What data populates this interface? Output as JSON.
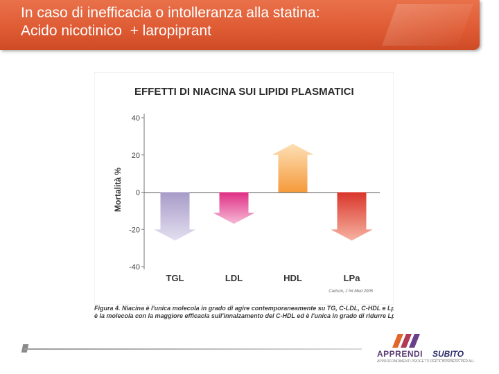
{
  "slide": {
    "title_line1": "In caso di inefficacia o intolleranza alla statina:",
    "title_line2": "Acido nicotinico  + laropiprant"
  },
  "chart_data": {
    "type": "bar",
    "title": "EFFETTI DI NIACINA SUI LIPIDI PLASMATICI",
    "ylabel": "Mortalità %",
    "xlabel": "",
    "categories": [
      "TGL",
      "LDL",
      "HDL",
      "LPa"
    ],
    "values": [
      -26,
      -17,
      26,
      -26
    ],
    "ylim": [
      -40,
      40
    ],
    "yticks": [
      40,
      20,
      0,
      -20,
      -40
    ],
    "grid": false,
    "colors": [
      "#b9afd3",
      "#e03a8a",
      "#f6a24a",
      "#e0442f"
    ],
    "source_note": "Carlson, J Int Med 2005"
  },
  "caption": {
    "line1": "Figura 4. Niacina è l'unica molecola in grado di agire contemporaneamente su TG, C-LDL, C-HDL e Lp(a). Inoltre,",
    "line2": "è la molecola con la maggiore efficacia sull'innalzamento del C-HDL ed è l'unica in grado di ridurre Lp(a)."
  },
  "logo": {
    "brand": "APPRENDI",
    "tagline": "APPROFONDIMENTI PROGETTI PER IL BUSINESS PER ALL",
    "brand2": "SUBITO"
  }
}
